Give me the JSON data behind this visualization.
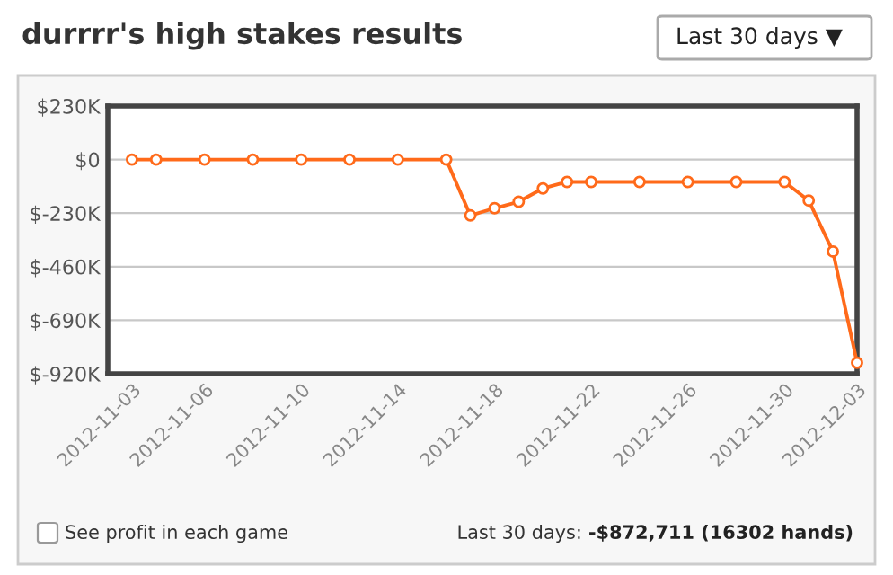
{
  "chart_data": {
    "type": "line",
    "title": "durrrr's high stakes results",
    "x": [
      "2012-11-03",
      "2012-11-04",
      "2012-11-06",
      "2012-11-08",
      "2012-11-10",
      "2012-11-12",
      "2012-11-14",
      "2012-11-16",
      "2012-11-17",
      "2012-11-18",
      "2012-11-19",
      "2012-11-20",
      "2012-11-21",
      "2012-11-22",
      "2012-11-24",
      "2012-11-26",
      "2012-11-28",
      "2012-11-30",
      "2012-12-01",
      "2012-12-02",
      "2012-12-03"
    ],
    "series": [
      {
        "color": "#ff6a1a",
        "values": [
          0,
          0,
          0,
          0,
          0,
          0,
          0,
          0,
          -240000,
          -209000,
          -181000,
          -124000,
          -96000,
          -96000,
          -96000,
          -96000,
          -96000,
          -96000,
          -176000,
          -395000,
          -872711
        ]
      }
    ],
    "xlim": [
      "2012-11-02",
      "2012-12-03"
    ],
    "xticks": [
      {
        "value": "2012-11-03",
        "label": "2012-11-03"
      },
      {
        "value": "2012-11-06",
        "label": "2012-11-06"
      },
      {
        "value": "2012-11-10",
        "label": "2012-11-10"
      },
      {
        "value": "2012-11-14",
        "label": "2012-11-14"
      },
      {
        "value": "2012-11-18",
        "label": "2012-11-18"
      },
      {
        "value": "2012-11-22",
        "label": "2012-11-22"
      },
      {
        "value": "2012-11-26",
        "label": "2012-11-26"
      },
      {
        "value": "2012-11-30",
        "label": "2012-11-30"
      },
      {
        "value": "2012-12-03",
        "label": "2012-12-03"
      }
    ],
    "ylim": [
      -920000,
      230000
    ],
    "yticks": [
      {
        "value": 230000,
        "label": "$230K"
      },
      {
        "value": 0,
        "label": "$0"
      },
      {
        "value": -230000,
        "label": "$-230K"
      },
      {
        "value": -460000,
        "label": "$-460K"
      },
      {
        "value": -690000,
        "label": "$-690K"
      },
      {
        "value": -920000,
        "label": "$-920K"
      }
    ],
    "grid": "y",
    "marker": "circle",
    "line_style": "solid",
    "legend": false,
    "annotations": [
      "Last 30 days ▼",
      "See profit in each game",
      "Last 30 days: ",
      "-$872,711 (16302 hands)"
    ]
  }
}
